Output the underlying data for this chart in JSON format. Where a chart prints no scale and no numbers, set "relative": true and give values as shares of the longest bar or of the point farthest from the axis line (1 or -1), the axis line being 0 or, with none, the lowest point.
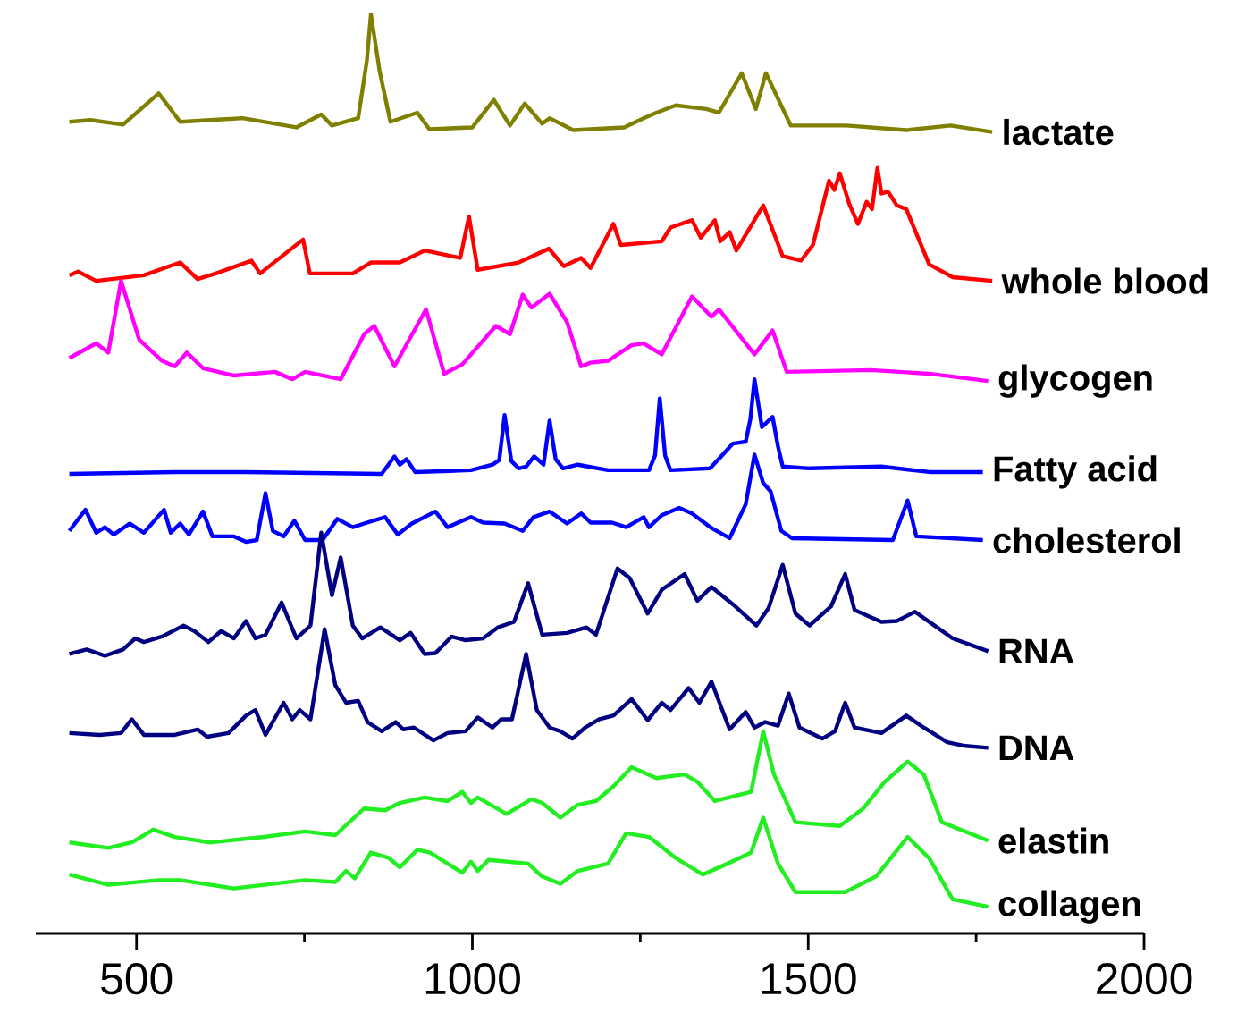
{
  "chart_data": {
    "type": "line",
    "relative": true,
    "xlim": [
      350,
      2000
    ],
    "xticks": [
      500,
      {
        "value": 750,
        "label": null
      },
      1000,
      {
        "value": 1250,
        "label": null
      },
      1500,
      {
        "value": 1750,
        "label": null
      },
      2000
    ],
    "series": [
      {
        "name": "lactate",
        "color": "#808000",
        "x": [
          400,
          432,
          480,
          533,
          565,
          658,
          738,
          775,
          791,
          830,
          843,
          849,
          862,
          878,
          918,
          936,
          1000,
          1032,
          1056,
          1078,
          1104,
          1115,
          1150,
          1226,
          1255,
          1274,
          1303,
          1348,
          1367,
          1401,
          1422,
          1437,
          1474,
          1557,
          1646,
          1712,
          1774
        ],
        "values": [
          0.883,
          0.885,
          0.88,
          0.914,
          0.883,
          0.887,
          0.877,
          0.891,
          0.879,
          0.887,
          0.95,
          1.0,
          0.938,
          0.883,
          0.893,
          0.875,
          0.877,
          0.907,
          0.879,
          0.903,
          0.881,
          0.887,
          0.874,
          0.877,
          0.887,
          0.893,
          0.901,
          0.897,
          0.893,
          0.936,
          0.897,
          0.936,
          0.879,
          0.879,
          0.874,
          0.879,
          0.872
        ]
      },
      {
        "name": "whole blood",
        "color": "#ff0000",
        "x": [
          400,
          413,
          440,
          511,
          565,
          591,
          618,
          671,
          684,
          748,
          758,
          822,
          849,
          892,
          929,
          982,
          995,
          1008,
          1069,
          1114,
          1136,
          1162,
          1176,
          1210,
          1221,
          1282,
          1295,
          1327,
          1340,
          1361,
          1369,
          1383,
          1393,
          1433,
          1462,
          1489,
          1507,
          1531,
          1539,
          1547,
          1561,
          1574,
          1587,
          1595,
          1603,
          1609,
          1619,
          1632,
          1646,
          1680,
          1715,
          1774
        ],
        "values": [
          0.716,
          0.72,
          0.71,
          0.716,
          0.73,
          0.712,
          0.718,
          0.732,
          0.718,
          0.755,
          0.718,
          0.718,
          0.73,
          0.73,
          0.743,
          0.735,
          0.78,
          0.722,
          0.73,
          0.745,
          0.726,
          0.735,
          0.724,
          0.772,
          0.749,
          0.753,
          0.768,
          0.776,
          0.757,
          0.776,
          0.753,
          0.763,
          0.743,
          0.792,
          0.737,
          0.732,
          0.749,
          0.819,
          0.809,
          0.827,
          0.794,
          0.772,
          0.796,
          0.788,
          0.833,
          0.805,
          0.807,
          0.792,
          0.788,
          0.728,
          0.714,
          0.71
        ]
      },
      {
        "name": "glycogen",
        "color": "#ff00ff",
        "x": [
          400,
          440,
          458,
          477,
          504,
          538,
          557,
          575,
          599,
          645,
          706,
          732,
          751,
          804,
          839,
          854,
          884,
          931,
          958,
          985,
          1035,
          1056,
          1075,
          1088,
          1115,
          1141,
          1162,
          1176,
          1202,
          1237,
          1255,
          1282,
          1327,
          1356,
          1367,
          1420,
          1447,
          1468,
          1593,
          1680,
          1768
        ],
        "values": [
          0.626,
          0.642,
          0.632,
          0.71,
          0.646,
          0.623,
          0.617,
          0.632,
          0.615,
          0.607,
          0.611,
          0.603,
          0.611,
          0.603,
          0.652,
          0.661,
          0.617,
          0.679,
          0.609,
          0.619,
          0.661,
          0.652,
          0.695,
          0.681,
          0.696,
          0.665,
          0.617,
          0.621,
          0.623,
          0.64,
          0.642,
          0.63,
          0.693,
          0.671,
          0.679,
          0.63,
          0.656,
          0.611,
          0.613,
          0.609,
          0.601
        ]
      },
      {
        "name": "Fatty acid",
        "color": "#0000ff",
        "x": [
          400,
          557,
          663,
          865,
          884,
          892,
          902,
          915,
          998,
          1030,
          1040,
          1048,
          1058,
          1069,
          1080,
          1092,
          1106,
          1115,
          1124,
          1135,
          1157,
          1202,
          1263,
          1272,
          1279,
          1287,
          1295,
          1354,
          1388,
          1407,
          1414,
          1420,
          1431,
          1447,
          1455,
          1462,
          1502,
          1609,
          1680,
          1760
        ],
        "values": [
          0.5,
          0.502,
          0.502,
          0.5,
          0.519,
          0.51,
          0.516,
          0.502,
          0.504,
          0.51,
          0.515,
          0.564,
          0.514,
          0.506,
          0.508,
          0.519,
          0.51,
          0.558,
          0.516,
          0.506,
          0.51,
          0.504,
          0.504,
          0.52,
          0.582,
          0.52,
          0.504,
          0.506,
          0.533,
          0.535,
          0.56,
          0.603,
          0.551,
          0.562,
          0.53,
          0.508,
          0.506,
          0.508,
          0.502,
          0.502
        ]
      },
      {
        "name": "cholesterol",
        "color": "#0000ff",
        "x": [
          400,
          424,
          440,
          453,
          466,
          490,
          511,
          541,
          551,
          565,
          578,
          599,
          613,
          645,
          663,
          679,
          692,
          703,
          719,
          735,
          751,
          777,
          799,
          822,
          839,
          870,
          889,
          910,
          945,
          963,
          998,
          1016,
          1048,
          1075,
          1091,
          1115,
          1141,
          1162,
          1176,
          1208,
          1229,
          1255,
          1263,
          1282,
          1308,
          1327,
          1354,
          1383,
          1407,
          1420,
          1433,
          1444,
          1460,
          1476,
          1626,
          1648,
          1661,
          1760
        ],
        "values": [
          0.438,
          0.461,
          0.436,
          0.442,
          0.434,
          0.446,
          0.436,
          0.461,
          0.436,
          0.446,
          0.434,
          0.459,
          0.432,
          0.432,
          0.426,
          0.428,
          0.479,
          0.438,
          0.432,
          0.449,
          0.428,
          0.428,
          0.451,
          0.442,
          0.446,
          0.453,
          0.434,
          0.446,
          0.459,
          0.442,
          0.453,
          0.447,
          0.446,
          0.438,
          0.453,
          0.459,
          0.446,
          0.457,
          0.447,
          0.447,
          0.442,
          0.453,
          0.442,
          0.455,
          0.463,
          0.457,
          0.442,
          0.43,
          0.467,
          0.521,
          0.49,
          0.481,
          0.438,
          0.43,
          0.428,
          0.471,
          0.432,
          0.428
        ]
      },
      {
        "name": "RNA",
        "color": "#000080",
        "x": [
          400,
          426,
          453,
          480,
          498,
          511,
          538,
          570,
          586,
          607,
          626,
          645,
          663,
          677,
          692,
          716,
          738,
          759,
          775,
          791,
          804,
          822,
          836,
          863,
          892,
          908,
          929,
          945,
          969,
          990,
          1016,
          1038,
          1062,
          1083,
          1104,
          1141,
          1170,
          1184,
          1216,
          1234,
          1261,
          1282,
          1316,
          1335,
          1356,
          1388,
          1423,
          1441,
          1462,
          1481,
          1502,
          1534,
          1555,
          1569,
          1609,
          1632,
          1659,
          1688,
          1715,
          1768
        ],
        "values": [
          0.304,
          0.309,
          0.302,
          0.309,
          0.321,
          0.317,
          0.323,
          0.335,
          0.329,
          0.317,
          0.329,
          0.321,
          0.34,
          0.321,
          0.325,
          0.36,
          0.321,
          0.335,
          0.436,
          0.368,
          0.409,
          0.335,
          0.321,
          0.333,
          0.319,
          0.327,
          0.304,
          0.305,
          0.323,
          0.319,
          0.321,
          0.333,
          0.339,
          0.381,
          0.325,
          0.327,
          0.333,
          0.325,
          0.397,
          0.387,
          0.348,
          0.374,
          0.391,
          0.362,
          0.377,
          0.358,
          0.335,
          0.354,
          0.401,
          0.348,
          0.335,
          0.356,
          0.391,
          0.352,
          0.339,
          0.34,
          0.35,
          0.335,
          0.321,
          0.307
        ]
      },
      {
        "name": "DNA",
        "color": "#000080",
        "x": [
          400,
          445,
          477,
          493,
          511,
          557,
          591,
          605,
          637,
          663,
          677,
          692,
          719,
          732,
          743,
          759,
          780,
          796,
          812,
          830,
          844,
          865,
          886,
          897,
          913,
          942,
          963,
          990,
          1008,
          1030,
          1043,
          1059,
          1080,
          1096,
          1115,
          1131,
          1149,
          1168,
          1189,
          1210,
          1237,
          1261,
          1282,
          1295,
          1322,
          1338,
          1356,
          1383,
          1407,
          1420,
          1436,
          1455,
          1471,
          1487,
          1521,
          1540,
          1555,
          1569,
          1609,
          1646,
          1672,
          1707,
          1734,
          1768
        ],
        "values": [
          0.218,
          0.216,
          0.218,
          0.233,
          0.216,
          0.216,
          0.222,
          0.214,
          0.218,
          0.237,
          0.243,
          0.216,
          0.251,
          0.233,
          0.243,
          0.233,
          0.331,
          0.27,
          0.251,
          0.253,
          0.23,
          0.22,
          0.23,
          0.222,
          0.224,
          0.21,
          0.218,
          0.22,
          0.235,
          0.224,
          0.233,
          0.233,
          0.304,
          0.243,
          0.224,
          0.22,
          0.212,
          0.224,
          0.233,
          0.237,
          0.255,
          0.232,
          0.251,
          0.243,
          0.267,
          0.251,
          0.274,
          0.222,
          0.241,
          0.224,
          0.23,
          0.226,
          0.261,
          0.224,
          0.212,
          0.22,
          0.251,
          0.224,
          0.218,
          0.237,
          0.224,
          0.208,
          0.204,
          0.202
        ]
      },
      {
        "name": "elastin",
        "color": "#22ee22",
        "x": [
          400,
          458,
          493,
          525,
          557,
          610,
          690,
          751,
          796,
          839,
          870,
          892,
          929,
          963,
          985,
          998,
          1008,
          1051,
          1088,
          1104,
          1131,
          1157,
          1184,
          1210,
          1237,
          1274,
          1316,
          1335,
          1361,
          1415,
          1433,
          1449,
          1481,
          1547,
          1582,
          1614,
          1648,
          1672,
          1699,
          1768
        ],
        "values": [
          0.099,
          0.093,
          0.099,
          0.113,
          0.105,
          0.099,
          0.105,
          0.111,
          0.107,
          0.136,
          0.134,
          0.142,
          0.148,
          0.144,
          0.154,
          0.142,
          0.148,
          0.13,
          0.146,
          0.142,
          0.126,
          0.14,
          0.144,
          0.16,
          0.181,
          0.169,
          0.173,
          0.165,
          0.144,
          0.154,
          0.22,
          0.173,
          0.121,
          0.117,
          0.136,
          0.165,
          0.187,
          0.173,
          0.121,
          0.101
        ]
      },
      {
        "name": "collagen",
        "color": "#22ee22",
        "x": [
          400,
          458,
          504,
          533,
          565,
          645,
          751,
          796,
          812,
          825,
          849,
          876,
          892,
          918,
          937,
          985,
          998,
          1008,
          1024,
          1083,
          1104,
          1131,
          1157,
          1202,
          1229,
          1263,
          1303,
          1343,
          1380,
          1415,
          1433,
          1455,
          1481,
          1555,
          1601,
          1648,
          1680,
          1715,
          1768
        ],
        "values": [
          0.064,
          0.053,
          0.056,
          0.058,
          0.058,
          0.049,
          0.058,
          0.056,
          0.068,
          0.06,
          0.088,
          0.082,
          0.072,
          0.091,
          0.088,
          0.066,
          0.078,
          0.068,
          0.08,
          0.076,
          0.062,
          0.054,
          0.068,
          0.076,
          0.109,
          0.105,
          0.082,
          0.064,
          0.076,
          0.088,
          0.126,
          0.076,
          0.045,
          0.045,
          0.062,
          0.105,
          0.082,
          0.037,
          0.029
        ]
      }
    ]
  }
}
